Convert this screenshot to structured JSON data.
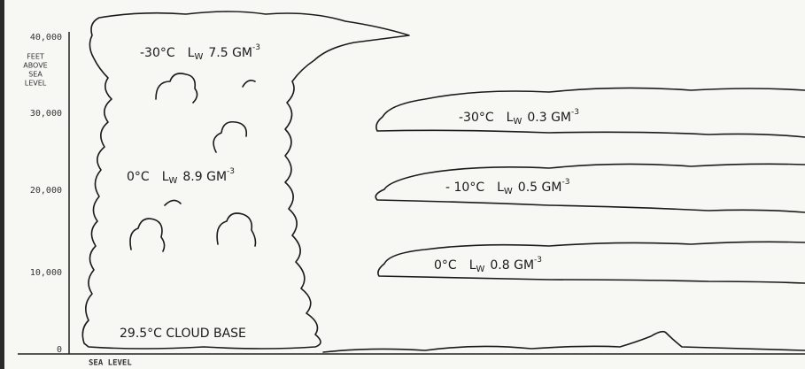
{
  "axis": {
    "label_lines": [
      "FEET",
      "ABOVE",
      "SEA",
      "LEVEL"
    ],
    "ticks": [
      "40,000",
      "30,000",
      "20,000",
      "10,000",
      "0"
    ],
    "baseline_label": "SEA LEVEL"
  },
  "cumulonimbus": {
    "labels": [
      {
        "temperature": "-30°C",
        "symbol": "L",
        "subscript": "W",
        "value": "7.5 GM",
        "exponent": "-3"
      },
      {
        "temperature": "0°C",
        "symbol": "L",
        "subscript": "W",
        "value": "8.9 GM",
        "exponent": "-3"
      }
    ],
    "base_label": "29.5°C CLOUD BASE"
  },
  "stratiform_layers": [
    {
      "temperature": "-30°C",
      "symbol": "L",
      "subscript": "W",
      "value": "0.3 GM",
      "exponent": "-3"
    },
    {
      "temperature": "- 10°C",
      "symbol": "L",
      "subscript": "W",
      "value": "0.5 GM",
      "exponent": "-3"
    },
    {
      "temperature": "0°C",
      "symbol": "L",
      "subscript": "W",
      "value": "0.8 GM",
      "exponent": "-3"
    }
  ]
}
